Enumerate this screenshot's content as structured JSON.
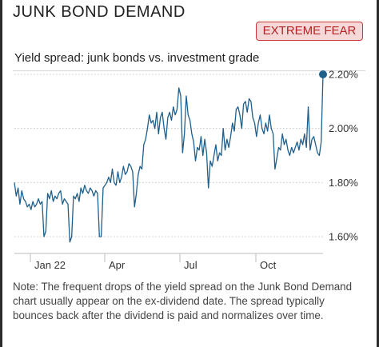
{
  "header": {
    "title": "JUNK BOND DEMAND",
    "badge": "EXTREME FEAR"
  },
  "colors": {
    "line": "#1f5f8b",
    "badge_border": "#c83a3a",
    "badge_bg": "#f6d8d8",
    "badge_text": "#b42424"
  },
  "chart_data": {
    "type": "line",
    "title": "Yield spread: junk bonds vs. investment grade",
    "xlabel": "",
    "ylabel": "",
    "x_ticks": [
      "Jan 22",
      "Apr",
      "Jul",
      "Oct"
    ],
    "y_ticks": [
      "1.60%",
      "1.80%",
      "2.00%",
      "2.20%"
    ],
    "ylim": [
      1.55,
      2.2
    ],
    "y_unit": "%",
    "grid": "horizontal dashed",
    "legend": "none",
    "end_marker": "dot at latest value",
    "series": [
      {
        "values": [
          1.8,
          1.75,
          1.78,
          1.72,
          1.77,
          1.74,
          1.73,
          1.71,
          1.72,
          1.7,
          1.73,
          1.71,
          1.72,
          1.74,
          1.72,
          1.73,
          1.6,
          1.62,
          1.76,
          1.74,
          1.77,
          1.73,
          1.75,
          1.74,
          1.76,
          1.77,
          1.72,
          1.74,
          1.73,
          1.72,
          1.58,
          1.6,
          1.75,
          1.74,
          1.76,
          1.73,
          1.78,
          1.76,
          1.79,
          1.77,
          1.76,
          1.78,
          1.77,
          1.75,
          1.77,
          1.76,
          1.6,
          1.6,
          1.78,
          1.79,
          1.8,
          1.82,
          1.8,
          1.85,
          1.8,
          1.79,
          1.84,
          1.8,
          1.82,
          1.86,
          1.83,
          1.84,
          1.87,
          1.86,
          1.84,
          1.71,
          1.76,
          1.83,
          1.86,
          1.85,
          1.94,
          1.96,
          2.0,
          2.05,
          2.02,
          2.03,
          2.0,
          2.06,
          1.98,
          2.04,
          2.06,
          2.0,
          1.96,
          2.04,
          2.06,
          2.03,
          2.08,
          2.05,
          2.07,
          2.15,
          2.12,
          1.91,
          1.98,
          2.12,
          2.05,
          2.03,
          1.98,
          1.95,
          1.88,
          1.93,
          1.92,
          1.97,
          1.9,
          1.96,
          1.91,
          1.78,
          1.88,
          1.86,
          1.9,
          1.94,
          1.88,
          1.91,
          1.9,
          2.0,
          1.92,
          1.96,
          1.93,
          1.97,
          2.02,
          1.99,
          2.07,
          2.08,
          2.05,
          2.0,
          2.09,
          2.1,
          2.06,
          2.11,
          2.1,
          2.04,
          2.02,
          1.97,
          2.02,
          2.05,
          2.0,
          1.98,
          2.02,
          1.99,
          2.05,
          2.0,
          1.98,
          1.85,
          1.89,
          1.93,
          1.92,
          1.98,
          1.94,
          1.96,
          1.92,
          1.9,
          1.93,
          1.91,
          1.93,
          1.95,
          1.92,
          1.96,
          1.94,
          1.98,
          1.93,
          2.08,
          1.92,
          1.96,
          1.97,
          1.94,
          1.91,
          1.9,
          1.95,
          2.2
        ]
      }
    ]
  },
  "note": "Note: The frequent drops of the yield spread on the Junk Bond Demand chart usually appear on the ex-dividend date. The spread typically bounces back after the dividend is paid and normalizes over time."
}
